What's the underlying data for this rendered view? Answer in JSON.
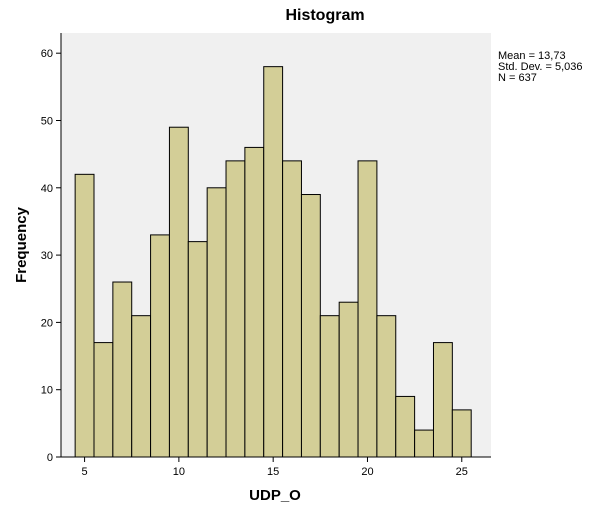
{
  "chart_data": {
    "type": "bar",
    "title": "Histogram",
    "xlabel": "UDP_O",
    "ylabel": "Frequency",
    "bin_width": 1,
    "x": [
      5,
      6,
      7,
      8,
      9,
      10,
      11,
      12,
      13,
      14,
      15,
      16,
      17,
      18,
      19,
      20,
      21,
      22,
      23,
      24,
      25
    ],
    "values": [
      42,
      17,
      26,
      21,
      33,
      49,
      32,
      40,
      44,
      46,
      58,
      44,
      39,
      21,
      23,
      44,
      21,
      9,
      4,
      17,
      7
    ],
    "xlim": [
      3.75,
      26.55
    ],
    "ylim": [
      0,
      63
    ],
    "xticks": [
      5,
      10,
      15,
      20,
      25
    ],
    "yticks": [
      0,
      10,
      20,
      30,
      40,
      50,
      60
    ],
    "legend": "none",
    "stats": {
      "mean": "Mean = 13,73",
      "std_dev": "Std. Dev. = 5,036",
      "n": "N = 637"
    },
    "colors": {
      "plot_background": "#f0f0f0",
      "bar_fill": "#d3ce97",
      "bar_stroke": "#000000"
    }
  }
}
